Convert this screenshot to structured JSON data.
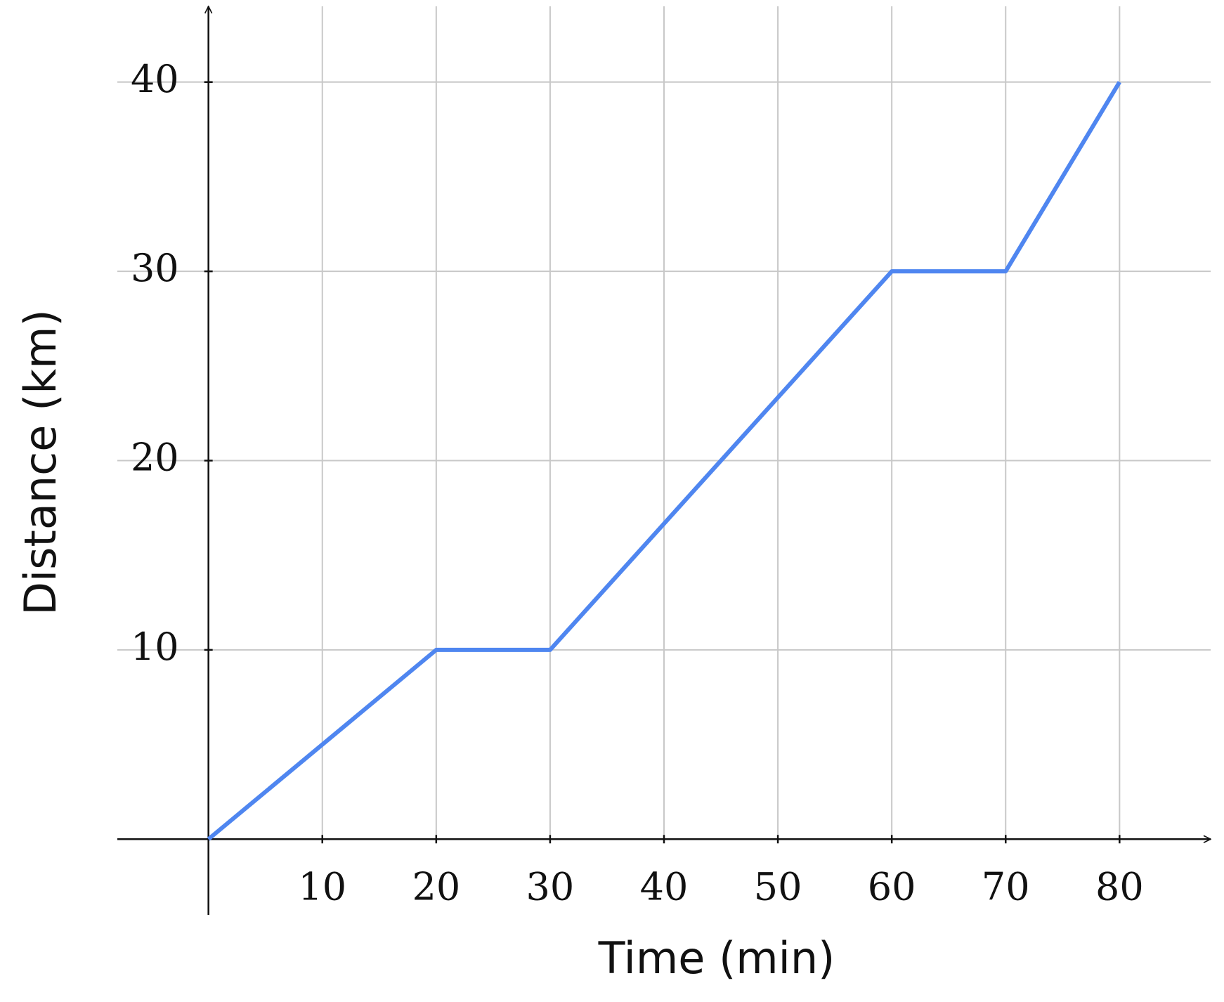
{
  "chart_data": {
    "type": "line",
    "x_label": "Time (min)",
    "y_label": "Distance (km)",
    "x": [
      0,
      20,
      30,
      60,
      70,
      80
    ],
    "series": [
      {
        "color": "#4f86f0",
        "values": [
          0,
          10,
          10,
          30,
          30,
          40
        ]
      }
    ],
    "xlim": [
      -8,
      88
    ],
    "ylim": [
      -4,
      44
    ],
    "xticks": [
      10,
      20,
      30,
      40,
      50,
      60,
      70,
      80
    ],
    "yticks": [
      10,
      20,
      30,
      40
    ],
    "grid": true
  }
}
